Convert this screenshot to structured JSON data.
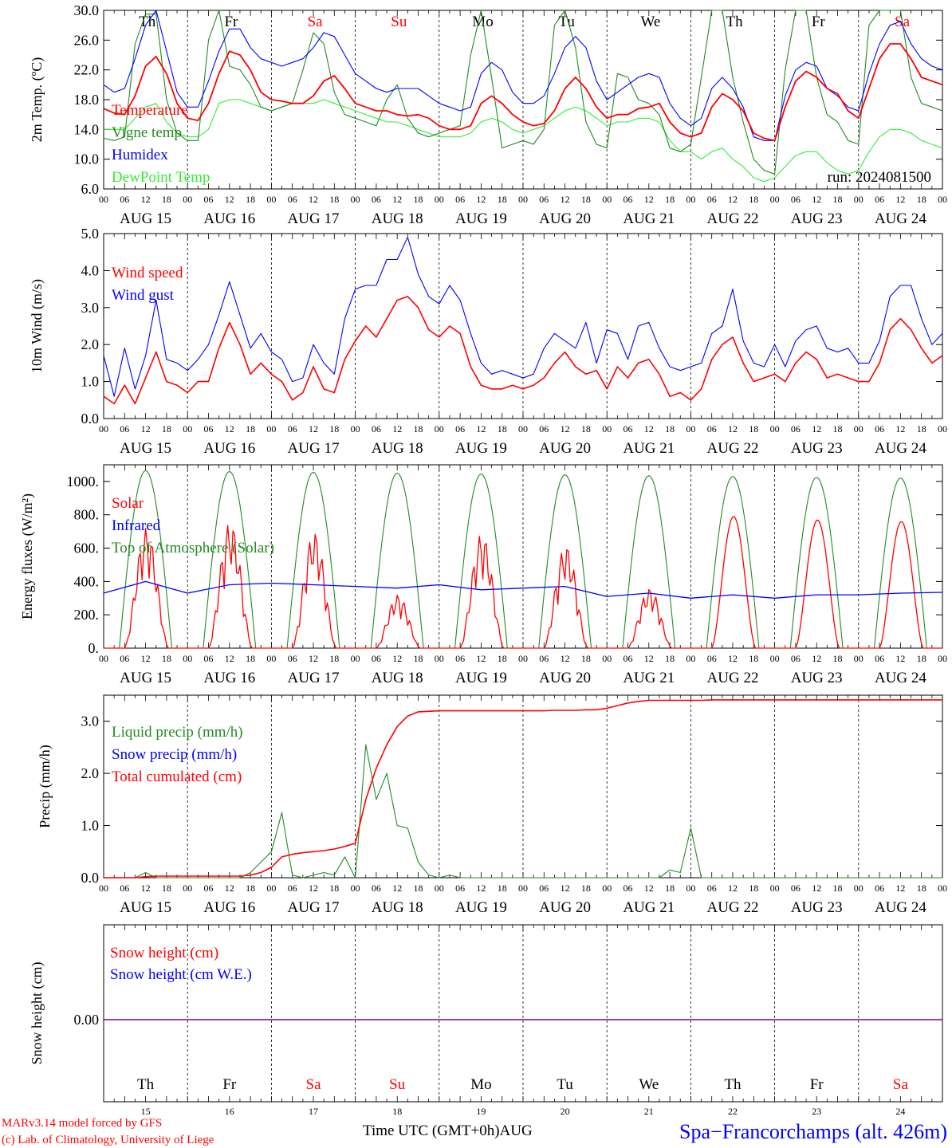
{
  "colors": {
    "red": "#ff0000",
    "green": "#228b22",
    "blue": "#0000ff",
    "lightgreen": "#33ee33",
    "purple": "#7f007f",
    "black": "#000000"
  },
  "x_axis": {
    "hour_ticks": [
      "00",
      "06",
      "12",
      "18"
    ],
    "dates": [
      "AUG 15",
      "AUG 16",
      "AUG 17",
      "AUG 18",
      "AUG 19",
      "AUG 20",
      "AUG 21",
      "AUG 22",
      "AUG 23",
      "AUG 24"
    ],
    "weekdays": [
      "Th",
      "Fr",
      "Sa",
      "Su",
      "Mo",
      "Tu",
      "We",
      "Th",
      "Fr",
      "Sa"
    ],
    "weekend_flags": [
      false,
      false,
      true,
      true,
      false,
      false,
      false,
      false,
      false,
      true
    ],
    "day_numbers": [
      "15",
      "16",
      "17",
      "18",
      "19",
      "20",
      "21",
      "22",
      "23",
      "24"
    ]
  },
  "footer": {
    "model": "MARv3.14 model forced by GFS",
    "credit": "(c) Lab. of Climatology, University of Liege",
    "time_label": "Time UTC (GMT+0h)AUG",
    "station": "Spa−Francorchamps (alt. 426m)"
  },
  "chart_data": [
    {
      "type": "line",
      "ylabel": "2m Temp. (ºC)",
      "ylim": [
        6,
        30
      ],
      "yticks": [
        "6.0",
        "10.0",
        "14.0",
        "18.0",
        "22.0",
        "26.0",
        "30.0"
      ],
      "run_label": "run: 2024081500",
      "x_hours": [
        0,
        3,
        6,
        9,
        12,
        15,
        18,
        21,
        24,
        27,
        30,
        33,
        36,
        39,
        42,
        45,
        48,
        51,
        54,
        57,
        60,
        63,
        66,
        69,
        72,
        75,
        78,
        81,
        84,
        87,
        90,
        93,
        96,
        99,
        102,
        105,
        108,
        111,
        114,
        117,
        120,
        123,
        126,
        129,
        132,
        135,
        138,
        141,
        144,
        147,
        150,
        153,
        156,
        159,
        162,
        165,
        168,
        171,
        174,
        177,
        180,
        183,
        186,
        189,
        192,
        195,
        198,
        201,
        204,
        207,
        210,
        213,
        216,
        219,
        222,
        225,
        228,
        231,
        234,
        237,
        240
      ],
      "series": [
        {
          "name": "Temperature",
          "color": "red",
          "values": [
            16.8,
            16.2,
            16.0,
            18.5,
            22.5,
            23.8,
            21.5,
            17.5,
            15.5,
            15.2,
            17.5,
            21.5,
            24.5,
            24.0,
            22.0,
            19.0,
            18.0,
            17.8,
            17.5,
            17.5,
            18.5,
            20.5,
            21.2,
            19.5,
            17.5,
            17.0,
            16.5,
            16.5,
            16.0,
            15.8,
            16.0,
            15.5,
            14.5,
            14.0,
            14.0,
            14.5,
            17.5,
            18.5,
            17.5,
            16.0,
            15.0,
            14.5,
            14.8,
            16.5,
            19.5,
            21.0,
            19.5,
            17.0,
            15.5,
            16.0,
            16.0,
            16.8,
            17.0,
            17.5,
            15.0,
            13.5,
            13.0,
            13.5,
            17.0,
            18.8,
            18.0,
            16.5,
            13.5,
            12.8,
            12.5,
            17.0,
            20.5,
            21.8,
            21.0,
            19.5,
            18.8,
            16.5,
            15.5,
            19.5,
            23.5,
            25.5,
            25.5,
            23.5,
            21.0,
            20.5,
            20.0
          ]
        },
        {
          "name": "Vigne temp",
          "color": "green",
          "values": [
            12.8,
            12.5,
            13.0,
            25.5,
            29.5,
            29.5,
            18.0,
            13.5,
            12.5,
            12.5,
            26.0,
            30.0,
            22.5,
            22.0,
            20.0,
            17.0,
            16.5,
            17.0,
            17.5,
            22.0,
            27.0,
            25.5,
            19.0,
            16.0,
            15.5,
            15.0,
            14.5,
            18.0,
            20.0,
            15.5,
            13.5,
            13.0,
            13.5,
            14.0,
            14.5,
            24.0,
            30.0,
            21.0,
            11.5,
            12.0,
            12.5,
            12.0,
            14.0,
            28.0,
            30.0,
            25.0,
            15.0,
            12.0,
            11.5,
            21.5,
            21.0,
            18.0,
            17.5,
            16.0,
            11.5,
            11.0,
            12.0,
            21.0,
            30.0,
            30.0,
            21.0,
            15.0,
            10.0,
            8.5,
            8.0,
            22.0,
            30.0,
            30.0,
            21.0,
            16.0,
            15.0,
            12.5,
            12.0,
            28.0,
            30.0,
            30.0,
            30.0,
            21.0,
            17.5,
            17.0,
            16.5
          ]
        },
        {
          "name": "Humidex",
          "color": "blue",
          "values": [
            20.0,
            19.0,
            19.5,
            23.5,
            28.0,
            30.0,
            24.5,
            19.0,
            17.0,
            17.0,
            20.5,
            24.5,
            27.5,
            27.5,
            25.0,
            23.5,
            23.0,
            22.5,
            23.0,
            23.5,
            25.0,
            27.0,
            26.5,
            24.0,
            21.5,
            20.5,
            19.5,
            19.0,
            19.5,
            19.5,
            19.5,
            18.5,
            17.5,
            17.0,
            16.5,
            17.0,
            21.5,
            23.0,
            22.0,
            19.0,
            17.5,
            17.5,
            18.5,
            21.5,
            25.0,
            26.5,
            25.0,
            20.5,
            18.0,
            19.0,
            20.0,
            21.0,
            21.5,
            21.0,
            17.5,
            15.5,
            14.5,
            15.5,
            19.5,
            21.0,
            19.5,
            17.0,
            13.0,
            12.5,
            12.5,
            18.5,
            22.0,
            23.0,
            22.5,
            19.5,
            18.5,
            17.0,
            16.5,
            21.5,
            25.5,
            28.0,
            28.5,
            25.5,
            23.5,
            22.5,
            22.0
          ]
        },
        {
          "name": "DewPoint Temp",
          "color": "lightgreen",
          "values": [
            14.0,
            14.0,
            14.0,
            15.5,
            17.0,
            17.5,
            15.0,
            13.5,
            13.0,
            13.0,
            14.0,
            17.5,
            18.0,
            18.0,
            17.5,
            17.0,
            16.5,
            17.0,
            17.5,
            17.5,
            17.5,
            18.0,
            17.5,
            17.0,
            16.5,
            16.0,
            15.5,
            15.0,
            15.0,
            14.5,
            14.0,
            13.5,
            13.0,
            13.0,
            13.0,
            13.5,
            15.0,
            15.5,
            15.0,
            14.0,
            13.5,
            14.0,
            14.5,
            15.5,
            16.5,
            17.0,
            16.5,
            15.5,
            14.5,
            15.0,
            15.0,
            15.5,
            15.5,
            15.0,
            12.5,
            11.0,
            11.0,
            10.0,
            11.0,
            11.5,
            10.0,
            9.0,
            7.5,
            7.0,
            7.5,
            9.0,
            10.5,
            11.0,
            11.0,
            9.5,
            8.5,
            8.0,
            8.5,
            11.0,
            13.0,
            14.0,
            14.0,
            13.5,
            12.5,
            12.0,
            11.5
          ]
        }
      ]
    },
    {
      "type": "line",
      "ylabel": "10m Wind (m/s)",
      "ylim": [
        0,
        5
      ],
      "yticks": [
        "0.0",
        "1.0",
        "2.0",
        "3.0",
        "4.0",
        "5.0"
      ],
      "x_hours": [
        0,
        3,
        6,
        9,
        12,
        15,
        18,
        21,
        24,
        27,
        30,
        33,
        36,
        39,
        42,
        45,
        48,
        51,
        54,
        57,
        60,
        63,
        66,
        69,
        72,
        75,
        78,
        81,
        84,
        87,
        90,
        93,
        96,
        99,
        102,
        105,
        108,
        111,
        114,
        117,
        120,
        123,
        126,
        129,
        132,
        135,
        138,
        141,
        144,
        147,
        150,
        153,
        156,
        159,
        162,
        165,
        168,
        171,
        174,
        177,
        180,
        183,
        186,
        189,
        192,
        195,
        198,
        201,
        204,
        207,
        210,
        213,
        216,
        219,
        222,
        225,
        228,
        231,
        234,
        237,
        240
      ],
      "series": [
        {
          "name": "Wind speed",
          "color": "red",
          "values": [
            0.6,
            0.4,
            0.9,
            0.4,
            1.1,
            1.8,
            1.0,
            0.9,
            0.7,
            1.0,
            1.0,
            1.9,
            2.6,
            2.0,
            1.2,
            1.5,
            1.2,
            1.0,
            0.5,
            0.7,
            1.4,
            0.8,
            0.7,
            1.6,
            2.1,
            2.5,
            2.2,
            2.7,
            3.2,
            3.3,
            3.0,
            2.4,
            2.2,
            2.5,
            2.3,
            1.4,
            0.9,
            0.8,
            0.8,
            0.9,
            0.8,
            0.9,
            1.1,
            1.5,
            1.8,
            1.4,
            1.2,
            1.3,
            0.8,
            1.4,
            1.1,
            1.5,
            1.6,
            1.2,
            0.6,
            0.7,
            0.5,
            0.8,
            1.6,
            2.0,
            2.2,
            1.5,
            1.0,
            1.1,
            1.2,
            1.0,
            1.5,
            1.8,
            1.6,
            1.1,
            1.2,
            1.1,
            1.0,
            1.0,
            1.5,
            2.4,
            2.7,
            2.4,
            1.9,
            1.5,
            1.7
          ]
        },
        {
          "name": "Wind gust",
          "color": "blue",
          "values": [
            1.7,
            0.6,
            1.9,
            0.8,
            1.7,
            3.2,
            1.6,
            1.5,
            1.3,
            1.6,
            2.0,
            2.8,
            3.7,
            2.8,
            1.9,
            2.3,
            1.8,
            1.6,
            1.0,
            1.1,
            2.0,
            1.5,
            1.2,
            2.7,
            3.5,
            3.6,
            3.6,
            4.3,
            4.3,
            4.9,
            3.9,
            3.3,
            3.1,
            3.6,
            3.2,
            2.3,
            1.5,
            1.2,
            1.3,
            1.2,
            1.1,
            1.2,
            1.9,
            2.3,
            2.1,
            1.9,
            2.6,
            1.5,
            2.4,
            2.3,
            1.6,
            2.5,
            2.6,
            1.9,
            1.4,
            1.3,
            1.4,
            1.5,
            2.3,
            2.5,
            3.5,
            2.1,
            1.5,
            1.4,
            2.0,
            1.4,
            2.1,
            2.4,
            2.5,
            1.9,
            1.8,
            1.9,
            1.5,
            1.5,
            2.1,
            3.3,
            3.6,
            3.6,
            2.7,
            2.0,
            2.3
          ]
        }
      ]
    },
    {
      "type": "line",
      "ylabel": "Energy fluxes (W/m²)",
      "ylim": [
        0,
        1100
      ],
      "yticks": [
        "0.",
        "200.",
        "400.",
        "600.",
        "800.",
        "1000."
      ],
      "series": [
        {
          "name": "Solar",
          "color": "red"
        },
        {
          "name": "Infrared",
          "color": "blue"
        },
        {
          "name": "Top of Atmosphere (Solar)",
          "color": "green"
        }
      ],
      "toa_peaks": [
        1065,
        1060,
        1055,
        1050,
        1045,
        1040,
        1035,
        1030,
        1025,
        1020
      ],
      "solar_peaks": [
        720,
        760,
        700,
        320,
        690,
        620,
        360,
        790,
        770,
        760
      ],
      "solar_envelope_factor": [
        0.55,
        0.55,
        0.55,
        0.45,
        0.5,
        0.55,
        0.5,
        1.0,
        1.0,
        1.0
      ],
      "x_hours": [
        0,
        12,
        24,
        36,
        48,
        60,
        72,
        84,
        96,
        108,
        120,
        132,
        144,
        156,
        168,
        180,
        192,
        204,
        216,
        228,
        240
      ],
      "infrared_values": [
        330,
        400,
        330,
        380,
        390,
        380,
        370,
        360,
        380,
        350,
        360,
        370,
        310,
        330,
        300,
        320,
        300,
        320,
        320,
        330,
        335
      ]
    },
    {
      "type": "line",
      "ylabel": "Precip (mm/h)",
      "ylim": [
        0,
        3.5
      ],
      "yticks": [
        "0.0",
        "1.0",
        "2.0",
        "3.0"
      ],
      "x_hours": [
        0,
        3,
        6,
        9,
        12,
        15,
        18,
        21,
        24,
        27,
        30,
        33,
        36,
        39,
        42,
        45,
        48,
        51,
        54,
        57,
        60,
        63,
        66,
        69,
        72,
        75,
        78,
        81,
        84,
        87,
        90,
        93,
        96,
        99,
        102,
        105,
        108,
        111,
        114,
        117,
        120,
        123,
        126,
        129,
        132,
        135,
        138,
        141,
        144,
        147,
        150,
        153,
        156,
        159,
        162,
        165,
        168,
        171,
        174,
        177,
        180,
        183,
        186,
        189,
        192,
        195,
        198,
        201,
        204,
        207,
        210,
        213,
        216,
        219,
        222,
        225,
        228,
        231,
        234,
        237,
        240
      ],
      "series": [
        {
          "name": "Liquid precip (mm/h)",
          "color": "green",
          "values": [
            0,
            0,
            0,
            0,
            0.1,
            0,
            0,
            0,
            0,
            0,
            0,
            0,
            0,
            0,
            0.1,
            0.3,
            0.5,
            1.25,
            0.05,
            0,
            0.05,
            0.1,
            0.05,
            0.4,
            0,
            2.55,
            1.5,
            2.0,
            1.0,
            0.95,
            0.3,
            0.05,
            0,
            0.05,
            0,
            0,
            0,
            0,
            0,
            0,
            0,
            0,
            0,
            0,
            0,
            0,
            0,
            0,
            0,
            0,
            0,
            0,
            0,
            0,
            0.15,
            0.1,
            0.95,
            0,
            0,
            0,
            0,
            0,
            0,
            0,
            0,
            0,
            0,
            0,
            0,
            0,
            0,
            0,
            0,
            0,
            0,
            0,
            0,
            0,
            0,
            0,
            0
          ]
        },
        {
          "name": "Snow precip (mm/h)",
          "color": "blue"
        },
        {
          "name": "Total cumulated (cm)",
          "color": "red",
          "values": [
            0,
            0,
            0,
            0,
            0.02,
            0.03,
            0.03,
            0.03,
            0.03,
            0.03,
            0.03,
            0.03,
            0.03,
            0.03,
            0.05,
            0.1,
            0.2,
            0.4,
            0.45,
            0.48,
            0.5,
            0.52,
            0.55,
            0.6,
            0.66,
            1.5,
            2.1,
            2.55,
            2.9,
            3.1,
            3.18,
            3.19,
            3.2,
            3.2,
            3.2,
            3.2,
            3.2,
            3.2,
            3.2,
            3.2,
            3.2,
            3.2,
            3.2,
            3.21,
            3.21,
            3.21,
            3.22,
            3.22,
            3.25,
            3.3,
            3.35,
            3.38,
            3.4,
            3.4,
            3.4,
            3.4,
            3.4,
            3.4,
            3.41,
            3.41,
            3.41,
            3.41,
            3.41,
            3.41,
            3.41,
            3.41,
            3.41,
            3.41,
            3.41,
            3.41,
            3.41,
            3.41,
            3.41,
            3.41,
            3.41,
            3.41,
            3.41,
            3.41,
            3.41,
            3.41,
            3.41
          ]
        }
      ]
    },
    {
      "type": "line",
      "ylabel": "Snow height (cm)",
      "yticks": [
        "0.00"
      ],
      "series": [
        {
          "name": "Snow height (cm)",
          "color": "red"
        },
        {
          "name": "Snow height (cm W.E.)",
          "color": "blue"
        }
      ],
      "value": 0.0
    }
  ]
}
